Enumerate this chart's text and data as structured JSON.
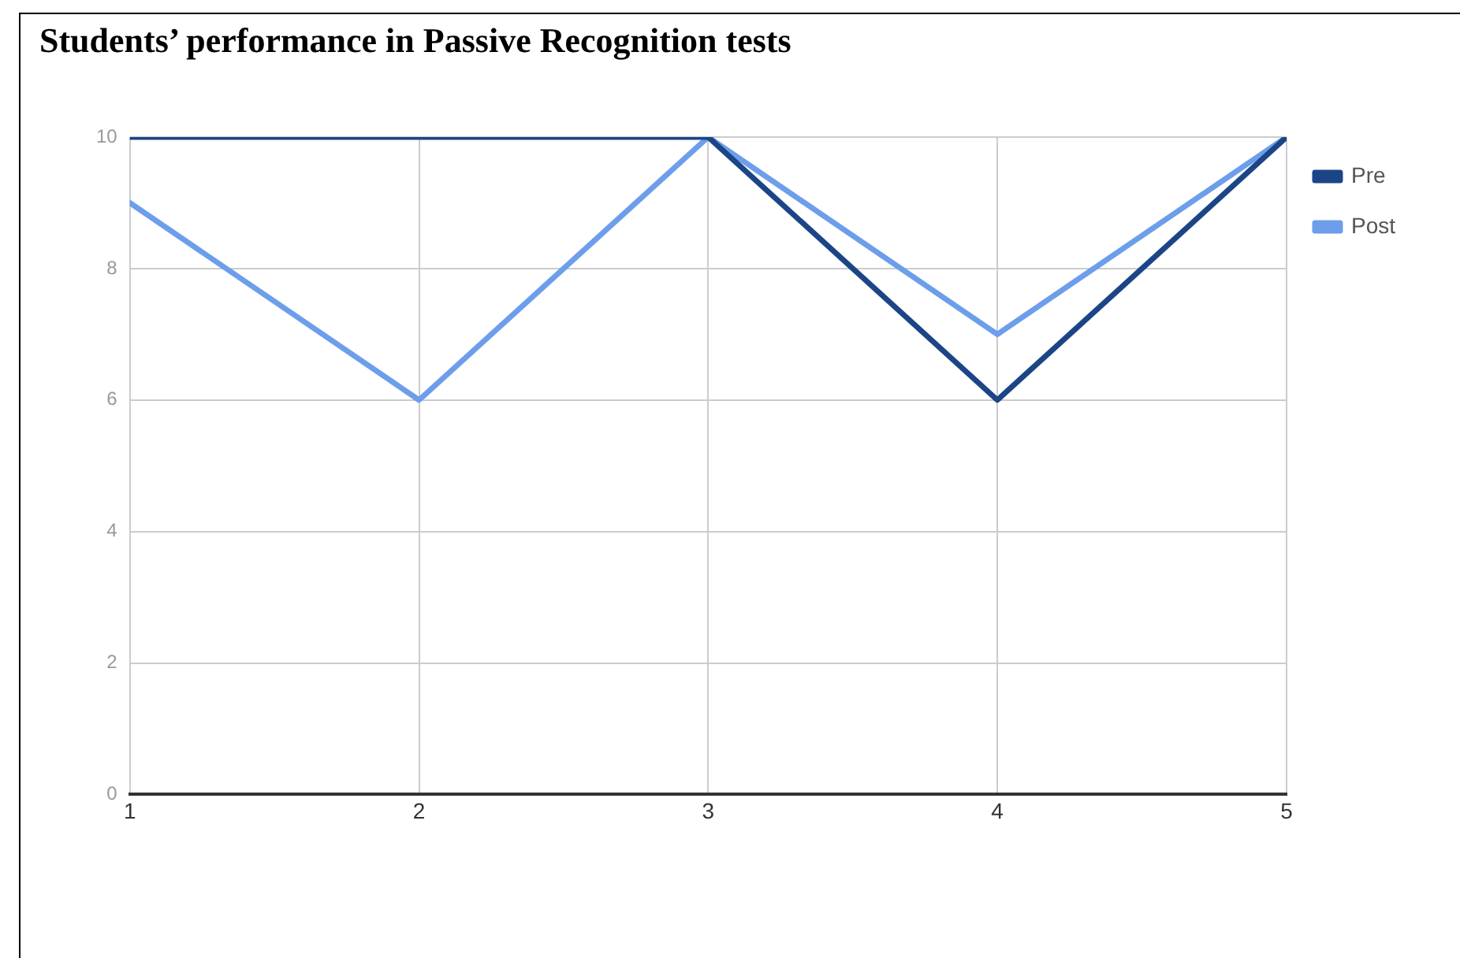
{
  "chart_data": {
    "type": "line",
    "title": "Students’ performance in Passive Recognition tests",
    "x": [
      1,
      2,
      3,
      4,
      5
    ],
    "series": [
      {
        "name": "Pre",
        "color": "#1c4587",
        "values": [
          10,
          10,
          10,
          6,
          10
        ]
      },
      {
        "name": "Post",
        "color": "#6d9eeb",
        "values": [
          9,
          6,
          10,
          7,
          10
        ]
      }
    ],
    "xlim": [
      1,
      5
    ],
    "xticks": [
      1,
      2,
      3,
      4,
      5
    ],
    "ylim": [
      0,
      10
    ],
    "yticks": [
      0,
      2,
      4,
      6,
      8,
      10
    ],
    "grid": true,
    "legend": "top right",
    "marker": "none",
    "line_style": "solid"
  }
}
